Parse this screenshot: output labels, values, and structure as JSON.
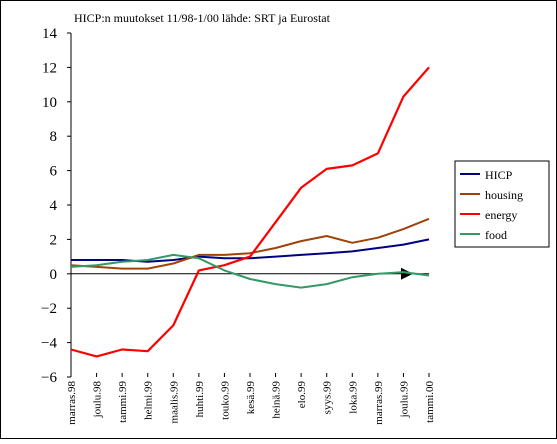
{
  "chart_data": {
    "type": "line",
    "title": "HICP:n muutokset 11/98-1/00 lähde: SRT ja Eurostat",
    "xlabel": "",
    "ylabel": "",
    "ylim": [
      -6,
      14
    ],
    "yticks": [
      -6,
      -4,
      -2,
      0,
      2,
      4,
      6,
      8,
      10,
      12,
      14
    ],
    "ytick_labels": [
      "−6",
      "−4",
      "−2",
      "0",
      "2",
      "4",
      "6",
      "8",
      "10",
      "12",
      "14"
    ],
    "categories": [
      "marras.98",
      "joulu.98",
      "tammi.99",
      "helmi.99",
      "maalis.99",
      "huhti.99",
      "touko.99",
      "kesä.99",
      "heinä.99",
      "elo.99",
      "syys.99",
      "loka.99",
      "marras.99",
      "joulu.99",
      "tammi.00"
    ],
    "grid": false,
    "legend_position": "right",
    "zero_line_arrow": true,
    "series": [
      {
        "name": "HICP",
        "color": "#000080",
        "values": [
          0.8,
          0.8,
          0.8,
          0.7,
          0.8,
          1.0,
          0.9,
          0.9,
          1.0,
          1.1,
          1.2,
          1.3,
          1.5,
          1.7,
          2.0
        ]
      },
      {
        "name": "housing",
        "color": "#a0430a",
        "values": [
          0.5,
          0.4,
          0.3,
          0.3,
          0.6,
          1.1,
          1.1,
          1.2,
          1.5,
          1.9,
          2.2,
          1.8,
          2.1,
          2.6,
          3.2
        ]
      },
      {
        "name": "energy",
        "color": "#ff0000",
        "values": [
          -4.4,
          -4.8,
          -4.4,
          -4.5,
          -3.0,
          0.2,
          0.5,
          1.0,
          3.0,
          5.0,
          6.1,
          6.3,
          7.0,
          10.3,
          12.0
        ]
      },
      {
        "name": "food",
        "color": "#339966",
        "values": [
          0.4,
          0.5,
          0.7,
          0.8,
          1.1,
          0.9,
          0.2,
          -0.3,
          -0.6,
          -0.8,
          -0.6,
          -0.2,
          0.0,
          0.1,
          -0.1
        ]
      }
    ]
  }
}
